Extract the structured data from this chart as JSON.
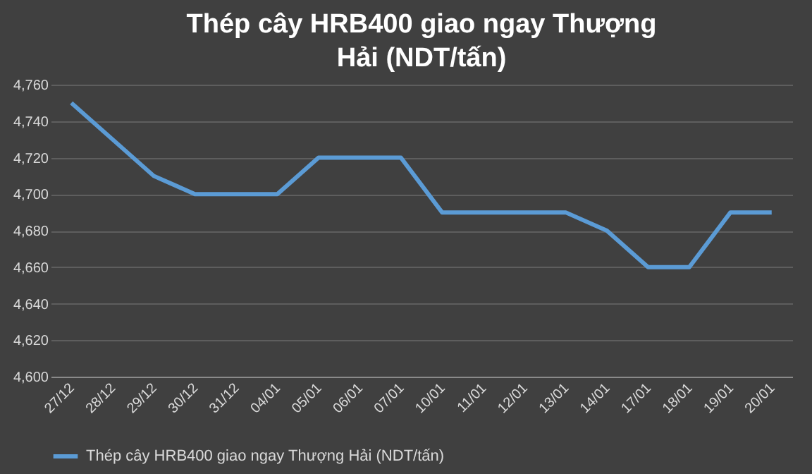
{
  "chart_data": {
    "type": "line",
    "title": "Thép cây HRB400 giao ngay Thượng Hải (NDT/tấn)",
    "categories": [
      "27/12",
      "28/12",
      "29/12",
      "30/12",
      "31/12",
      "04/01",
      "05/01",
      "06/01",
      "07/01",
      "10/01",
      "11/01",
      "12/01",
      "13/01",
      "14/01",
      "17/01",
      "18/01",
      "19/01",
      "20/01"
    ],
    "series": [
      {
        "name": "Thép cây HRB400 giao ngay Thượng Hải (NDT/tấn)",
        "color": "#5b9bd5",
        "values": [
          4750,
          4730,
          4710,
          4700,
          4700,
          4700,
          4720,
          4720,
          4720,
          4690,
          4690,
          4690,
          4690,
          4680,
          4660,
          4660,
          4690,
          4690
        ]
      }
    ],
    "ylim": [
      4600,
      4760
    ],
    "yticks": [
      {
        "value": 4600,
        "label": "4,600"
      },
      {
        "value": 4620,
        "label": "4,620"
      },
      {
        "value": 4640,
        "label": "4,640"
      },
      {
        "value": 4660,
        "label": "4,660"
      },
      {
        "value": 4680,
        "label": "4,680"
      },
      {
        "value": 4700,
        "label": "4,700"
      },
      {
        "value": 4720,
        "label": "4,720"
      },
      {
        "value": 4740,
        "label": "4,740"
      },
      {
        "value": 4760,
        "label": "4,760"
      }
    ],
    "grid": "y",
    "legend": "bottom",
    "marker": "none",
    "line_style": "solid"
  }
}
